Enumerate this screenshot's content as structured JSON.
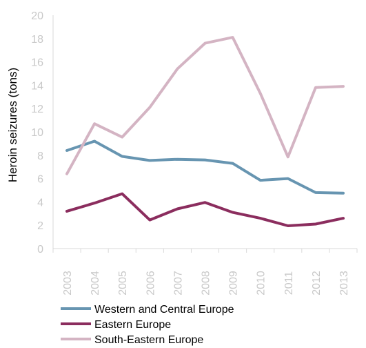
{
  "chart_data": {
    "type": "line",
    "title": "",
    "xlabel": "",
    "ylabel": "Heroin seizures (tons)",
    "categories": [
      "2003",
      "2004",
      "2005",
      "2006",
      "2007",
      "2008",
      "2009",
      "2010",
      "2011",
      "2012",
      "2013"
    ],
    "yticks": [
      "0",
      "2",
      "4",
      "6",
      "8",
      "10",
      "12",
      "14",
      "16",
      "18",
      "20"
    ],
    "ylim": [
      0,
      20
    ],
    "grid": false,
    "legend_position": "bottom",
    "series": [
      {
        "name": "Western and Central Europe",
        "color": "#6795b1",
        "values": [
          8.4,
          9.2,
          7.9,
          7.55,
          7.65,
          7.6,
          7.3,
          5.85,
          6.0,
          4.8,
          4.75
        ]
      },
      {
        "name": "Eastern Europe",
        "color": "#8b2d5e",
        "values": [
          3.2,
          3.9,
          4.7,
          2.45,
          3.4,
          3.95,
          3.1,
          2.6,
          1.95,
          2.1,
          2.6
        ]
      },
      {
        "name": "South-Eastern Europe",
        "color": "#d4b4c3",
        "values": [
          6.4,
          10.7,
          9.55,
          12.1,
          15.4,
          17.6,
          18.1,
          13.3,
          7.85,
          13.8,
          13.9
        ]
      }
    ]
  }
}
